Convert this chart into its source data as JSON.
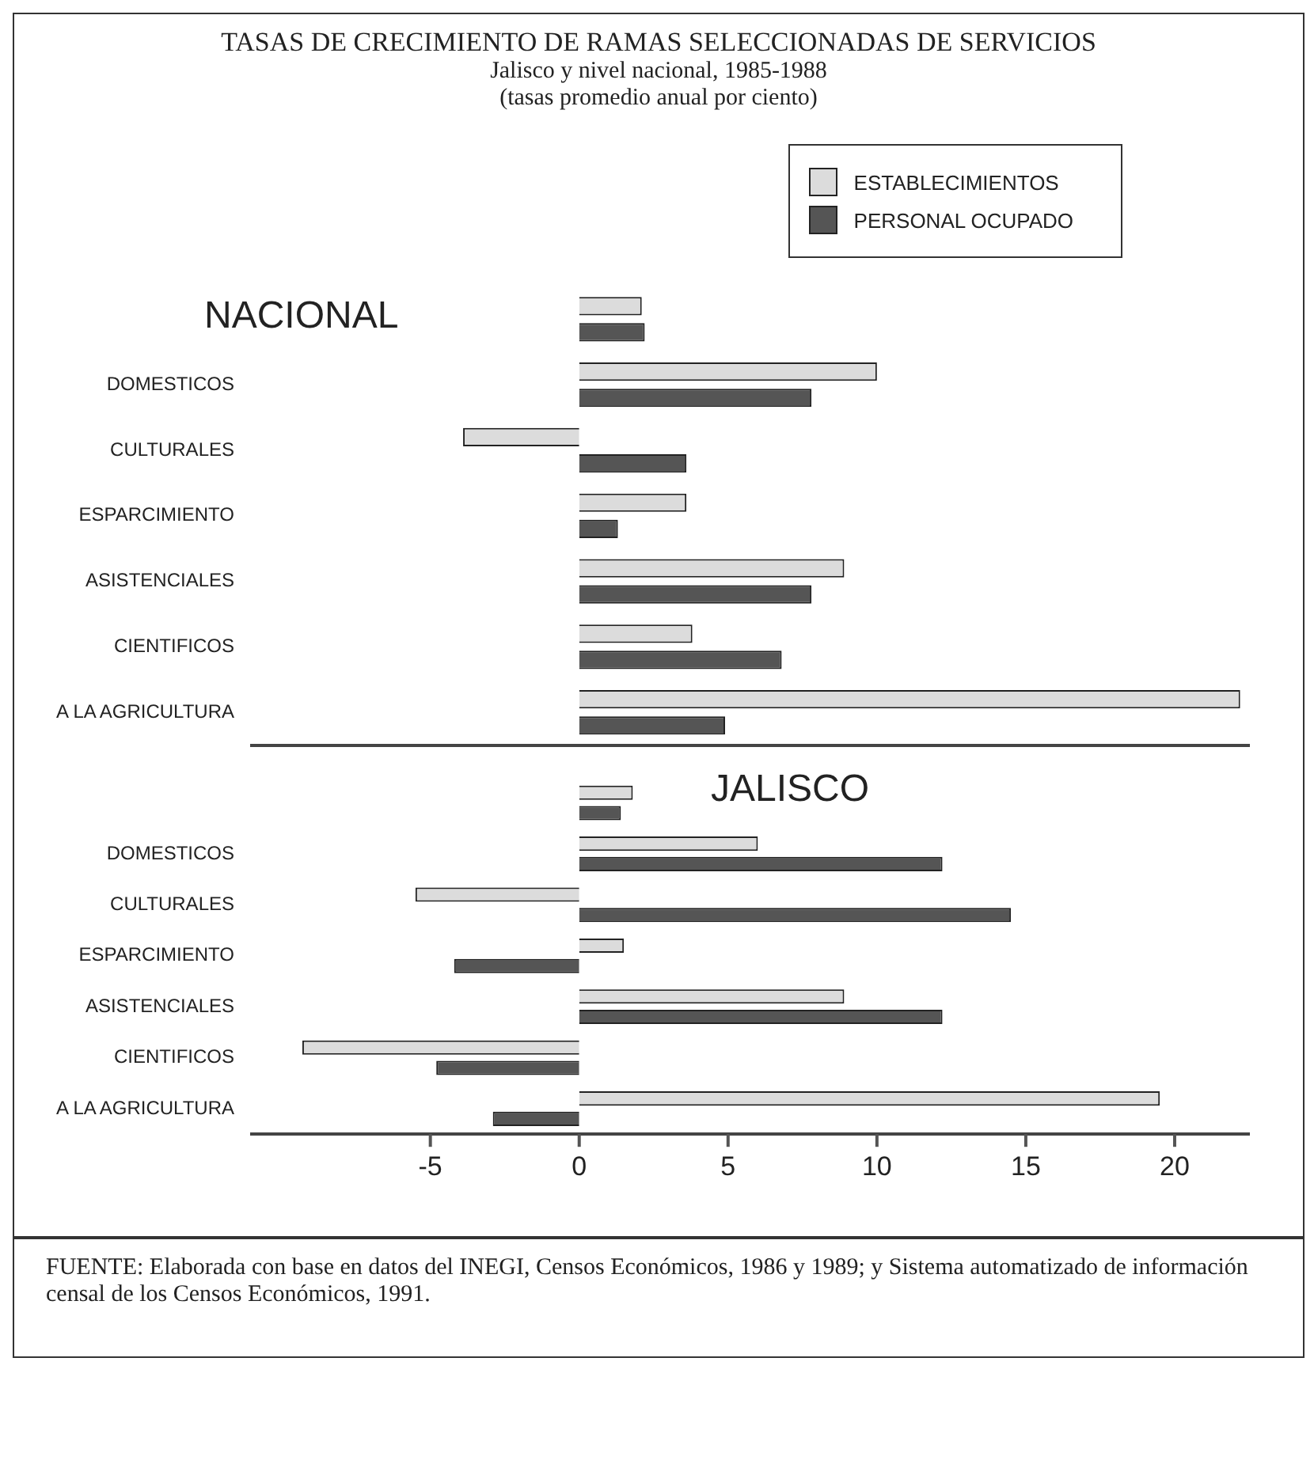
{
  "chart_data": [
    {
      "type": "bar",
      "orientation": "horizontal",
      "title": "TASAS DE CRECIMIENTO DE RAMAS SELECCIONADAS DE SERVICIOS",
      "subtitle": "Jalisco y nivel nacional, 1985-1988",
      "annotations": [
        "(tasas promedio anual por ciento)",
        "NACIONAL"
      ],
      "categories": [
        null,
        "DOMESTICOS",
        "CULTURALES",
        "ESPARCIMIENTO",
        "ASISTENCIALES",
        "CIENTIFICOS",
        "A LA AGRICULTURA"
      ],
      "series": [
        {
          "name": "ESTABLECIMIENTOS",
          "color": "#dcdcdc",
          "values": [
            2.1,
            10.0,
            -3.9,
            3.6,
            8.9,
            3.8,
            22.2
          ]
        },
        {
          "name": "PERSONAL OCUPADO",
          "color": "#555555",
          "values": [
            2.2,
            7.8,
            3.6,
            1.3,
            7.8,
            6.8,
            4.9
          ]
        }
      ],
      "xlim": [
        -11,
        22.5
      ],
      "tick_labels": "y",
      "legend": "top right",
      "grid": false
    },
    {
      "type": "bar",
      "orientation": "horizontal",
      "annotations": [
        "JALISCO",
        "FUENTE: Elaborada con base en datos del INEGI, Censos Económicos, 1986 y 1989; y Sistema automatizado de información censal de los Censos Económicos, 1991."
      ],
      "categories": [
        null,
        "DOMESTICOS",
        "CULTURALES",
        "ESPARCIMIENTO",
        "ASISTENCIALES",
        "CIENTIFICOS",
        "A LA AGRICULTURA"
      ],
      "series": [
        {
          "color": "#dcdcdc",
          "values": [
            1.8,
            6.0,
            -5.5,
            1.5,
            8.9,
            -9.3,
            19.5
          ]
        },
        {
          "color": "#555555",
          "values": [
            1.4,
            12.2,
            14.5,
            -4.2,
            12.2,
            -4.8,
            -2.9
          ]
        }
      ],
      "xlim": [
        -11,
        22.5
      ],
      "xticks": [
        -5,
        0,
        5,
        10,
        15,
        20
      ],
      "grid": false
    }
  ]
}
